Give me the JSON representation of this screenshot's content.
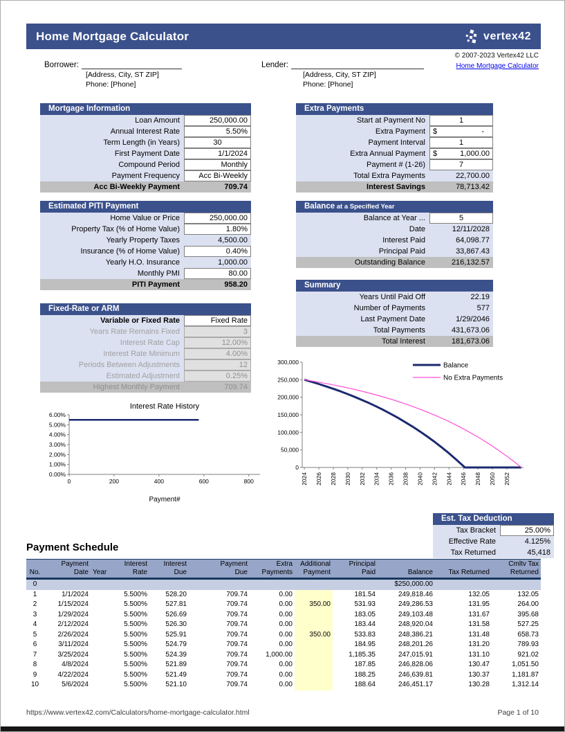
{
  "header": {
    "title": "Home Mortgage Calculator",
    "logo_text": "vertex42",
    "copyright": "© 2007-2023 Vertex42 LLC",
    "link_text": "Home Mortgage Calculator"
  },
  "contacts": {
    "borrower_label": "Borrower:",
    "lender_label": "Lender:",
    "address": "[Address, City, ST ZIP]",
    "phone": "Phone: [Phone]"
  },
  "sections": {
    "mortgage_info": {
      "title": "Mortgage Information",
      "rows": [
        {
          "label": "Loan Amount",
          "value": "250,000.00",
          "type": "input"
        },
        {
          "label": "Annual Interest Rate",
          "value": "5.50%",
          "type": "input"
        },
        {
          "label": "Term Length (in Years)",
          "value": "30",
          "type": "input",
          "align": "center"
        },
        {
          "label": "First Payment Date",
          "value": "1/1/2024",
          "type": "input"
        },
        {
          "label": "Compound Period",
          "value": "Monthly",
          "type": "input"
        },
        {
          "label": "Payment Frequency",
          "value": "Acc Bi-Weekly",
          "type": "input"
        },
        {
          "label": "Acc Bi-Weekly Payment",
          "value": "709.74",
          "type": "total",
          "bold": true
        }
      ]
    },
    "extra_payments": {
      "title": "Extra Payments",
      "rows": [
        {
          "label": "Start at Payment No",
          "value": "1",
          "type": "input",
          "align": "center"
        },
        {
          "label": "Extra Payment",
          "value": "-",
          "prefix": "$",
          "type": "currency"
        },
        {
          "label": "Payment Interval",
          "value": "1",
          "type": "input",
          "align": "center"
        },
        {
          "label": "Extra Annual Payment",
          "value": "1,000.00",
          "prefix": "$",
          "type": "currency"
        },
        {
          "label": "Payment # (1-26)",
          "value": "7",
          "type": "input",
          "align": "center"
        },
        {
          "label": "Total Extra Payments",
          "value": "22,700.00",
          "type": "calc"
        },
        {
          "label": "Interest Savings",
          "value": "78,713.42",
          "type": "total",
          "bold_label": true
        }
      ]
    },
    "piti": {
      "title": "Estimated PITI Payment",
      "rows": [
        {
          "label": "Home Value or Price",
          "value": "250,000.00",
          "type": "input"
        },
        {
          "label": "Property Tax (% of Home Value)",
          "value": "1.80%",
          "type": "input"
        },
        {
          "label": "Yearly Property Taxes",
          "value": "4,500.00",
          "type": "calc"
        },
        {
          "label": "Insurance (% of Home Value)",
          "value": "0.40%",
          "type": "input"
        },
        {
          "label": "Yearly H.O. Insurance",
          "value": "1,000.00",
          "type": "calc"
        },
        {
          "label": "Monthly PMI",
          "value": "80.00",
          "type": "input"
        },
        {
          "label": "PITI Payment",
          "value": "958.20",
          "type": "total",
          "bold": true
        }
      ]
    },
    "balance_at_year": {
      "title": "Balance",
      "subtitle": "at a Specified Year",
      "rows": [
        {
          "label": "Balance at Year ...",
          "value": "5",
          "type": "input",
          "align": "center"
        },
        {
          "label": "Date",
          "value": "12/11/2028",
          "type": "calc"
        },
        {
          "label": "Interest Paid",
          "value": "64,098.77",
          "type": "calc"
        },
        {
          "label": "Principal Paid",
          "value": "33,867.43",
          "type": "calc"
        },
        {
          "label": "Outstanding Balance",
          "value": "216,132.57",
          "type": "total"
        }
      ]
    },
    "summary": {
      "title": "Summary",
      "rows": [
        {
          "label": "Years Until Paid Off",
          "value": "22.19",
          "type": "calc"
        },
        {
          "label": "Number of Payments",
          "value": "577",
          "type": "calc"
        },
        {
          "label": "Last Payment Date",
          "value": "1/29/2046",
          "type": "calc"
        },
        {
          "label": "Total Payments",
          "value": "431,673.06",
          "type": "calc"
        },
        {
          "label": "Total Interest",
          "value": "181,673.06",
          "type": "total"
        }
      ]
    },
    "arm": {
      "title": "Fixed-Rate or ARM",
      "rows": [
        {
          "label": "Variable or Fixed Rate",
          "value": "Fixed Rate",
          "type": "input",
          "bold_label": true
        },
        {
          "label": "Years Rate Remains Fixed",
          "value": "3",
          "type": "input",
          "muted": true
        },
        {
          "label": "Interest Rate Cap",
          "value": "12.00%",
          "type": "input",
          "muted": true
        },
        {
          "label": "Interest Rate Minimum",
          "value": "4.00%",
          "type": "input",
          "muted": true
        },
        {
          "label": "Periods Between Adjustments",
          "value": "12",
          "type": "input",
          "muted": true
        },
        {
          "label": "Estimated Adjustment",
          "value": "0.25%",
          "type": "input",
          "muted": true
        },
        {
          "label": "Highest Monthly Payment",
          "value": "709.74",
          "type": "total",
          "muted": true
        }
      ]
    },
    "tax_deduction": {
      "title": "Est. Tax Deduction",
      "rows": [
        {
          "label": "Tax Bracket",
          "value": "25.00%",
          "type": "input"
        },
        {
          "label": "Effective Rate",
          "value": "4.125%",
          "type": "calc"
        },
        {
          "label": "Tax Returned",
          "value": "45,418",
          "type": "calc"
        }
      ]
    }
  },
  "payment_schedule": {
    "title": "Payment Schedule",
    "columns": [
      {
        "lines": [
          "No."
        ],
        "align": "center"
      },
      {
        "lines": [
          "Payment",
          "Date"
        ],
        "align": "right"
      },
      {
        "lines": [
          "Year"
        ],
        "align": "left"
      },
      {
        "lines": [
          "Interest",
          "Rate"
        ],
        "align": "right"
      },
      {
        "lines": [
          "Interest",
          "Due"
        ],
        "align": "right"
      },
      {
        "lines": [
          "Payment",
          "Due"
        ],
        "align": "right"
      },
      {
        "lines": [
          "Extra",
          "Payments"
        ],
        "align": "right"
      },
      {
        "lines": [
          "Additional",
          "Payment"
        ],
        "align": "right",
        "highlight": true
      },
      {
        "lines": [
          "Principal",
          "Paid"
        ],
        "align": "right"
      },
      {
        "lines": [
          "Balance"
        ],
        "align": "right"
      },
      {
        "lines": [
          "Tax Returned"
        ],
        "align": "right"
      },
      {
        "lines": [
          "Cmltv Tax",
          "Returned"
        ],
        "align": "right"
      }
    ],
    "rows": [
      [
        "0",
        "",
        "",
        "",
        "",
        "",
        "",
        "",
        "",
        "$250,000.00",
        "",
        ""
      ],
      [
        "1",
        "1/1/2024",
        "",
        "5.500%",
        "528.20",
        "709.74",
        "0.00",
        "",
        "181.54",
        "249,818.46",
        "132.05",
        "132.05"
      ],
      [
        "2",
        "1/15/2024",
        "",
        "5.500%",
        "527.81",
        "709.74",
        "0.00",
        "350.00",
        "531.93",
        "249,286.53",
        "131.95",
        "264.00"
      ],
      [
        "3",
        "1/29/2024",
        "",
        "5.500%",
        "526.69",
        "709.74",
        "0.00",
        "",
        "183.05",
        "249,103.48",
        "131.67",
        "395.68"
      ],
      [
        "4",
        "2/12/2024",
        "",
        "5.500%",
        "526.30",
        "709.74",
        "0.00",
        "",
        "183.44",
        "248,920.04",
        "131.58",
        "527.25"
      ],
      [
        "5",
        "2/26/2024",
        "",
        "5.500%",
        "525.91",
        "709.74",
        "0.00",
        "350.00",
        "533.83",
        "248,386.21",
        "131.48",
        "658.73"
      ],
      [
        "6",
        "3/11/2024",
        "",
        "5.500%",
        "524.79",
        "709.74",
        "0.00",
        "",
        "184.95",
        "248,201.26",
        "131.20",
        "789.93"
      ],
      [
        "7",
        "3/25/2024",
        "",
        "5.500%",
        "524.39",
        "709.74",
        "1,000.00",
        "",
        "1,185.35",
        "247,015.91",
        "131.10",
        "921.02"
      ],
      [
        "8",
        "4/8/2024",
        "",
        "5.500%",
        "521.89",
        "709.74",
        "0.00",
        "",
        "187.85",
        "246,828.06",
        "130.47",
        "1,051.50"
      ],
      [
        "9",
        "4/22/2024",
        "",
        "5.500%",
        "521.49",
        "709.74",
        "0.00",
        "",
        "188.25",
        "246,639.81",
        "130.37",
        "1,181.87"
      ],
      [
        "10",
        "5/6/2024",
        "",
        "5.500%",
        "521.10",
        "709.74",
        "0.00",
        "",
        "188.64",
        "246,451.17",
        "130.28",
        "1,312.14"
      ]
    ]
  },
  "footer": {
    "url": "https://www.vertex42.com/Calculators/home-mortgage-calculator.html",
    "page_label": "Page 1 of 10"
  },
  "colors": {
    "header_blue": "#3b518c",
    "label_lavender": "#dce1f1",
    "total_gray": "#bfbfbf",
    "table_band": "#96a5c8",
    "table_row0": "#c6cee4",
    "highlight_yellow": "#ffffcc",
    "balance_navy": "#1b2a70",
    "no_extra_magenta": "#ff4fd8",
    "link_blue": "#0000ee"
  },
  "chart_data": [
    {
      "type": "line",
      "title": "Interest Rate History",
      "xlabel": "Payment#",
      "xlim": [
        0,
        850
      ],
      "ylim": [
        0,
        6
      ],
      "xticks": [
        0,
        200,
        400,
        600,
        800
      ],
      "yticks": [
        0,
        1,
        2,
        3,
        4,
        5,
        6
      ],
      "ytick_labels": [
        "0.00%",
        "1.00%",
        "2.00%",
        "3.00%",
        "4.00%",
        "5.00%",
        "6.00%"
      ],
      "series": [
        {
          "name": "Interest Rate",
          "color": "#1b2a70",
          "width": 2.5,
          "x": [
            0,
            577
          ],
          "values": [
            5.5,
            5.5
          ]
        }
      ]
    },
    {
      "type": "line",
      "title": "",
      "xlabel": "",
      "xlim": [
        2023.7,
        2054.3
      ],
      "ylim": [
        0,
        300000
      ],
      "xticks": [
        2024,
        2026,
        2028,
        2030,
        2032,
        2034,
        2036,
        2038,
        2040,
        2042,
        2044,
        2046,
        2048,
        2050,
        2052
      ],
      "rotate_xticks": true,
      "yticks": [
        0,
        50000,
        100000,
        150000,
        200000,
        250000,
        300000
      ],
      "ytick_labels": [
        "0",
        "50,000",
        "100,000",
        "150,000",
        "200,000",
        "250,000",
        "300,000"
      ],
      "legend": true,
      "series": [
        {
          "name": "Balance",
          "color": "#1b2a70",
          "width": 3,
          "x": [
            2024,
            2025,
            2026,
            2027,
            2028,
            2029,
            2030,
            2031,
            2032,
            2033,
            2034,
            2035,
            2036,
            2037,
            2038,
            2039,
            2040,
            2041,
            2042,
            2043,
            2044,
            2045,
            2046,
            2046.2,
            2054
          ],
          "values": [
            250000,
            244080,
            237830,
            231210,
            224220,
            216830,
            209030,
            200790,
            192100,
            182910,
            173200,
            162940,
            152100,
            140660,
            128560,
            115770,
            102280,
            88010,
            72970,
            57030,
            40230,
            22460,
            3720,
            0,
            0
          ]
        },
        {
          "name": "No Extra Payments",
          "color": "#ff4fd8",
          "width": 1.2,
          "x": [
            2024,
            2026,
            2028,
            2030,
            2032,
            2034,
            2036,
            2038,
            2040,
            2042,
            2044,
            2046,
            2048,
            2050,
            2052,
            2053,
            2054
          ],
          "values": [
            250000,
            243080,
            235340,
            226720,
            217080,
            206340,
            194350,
            180970,
            166030,
            149370,
            130770,
            110020,
            86870,
            61030,
            32190,
            16530,
            0
          ]
        }
      ]
    }
  ]
}
